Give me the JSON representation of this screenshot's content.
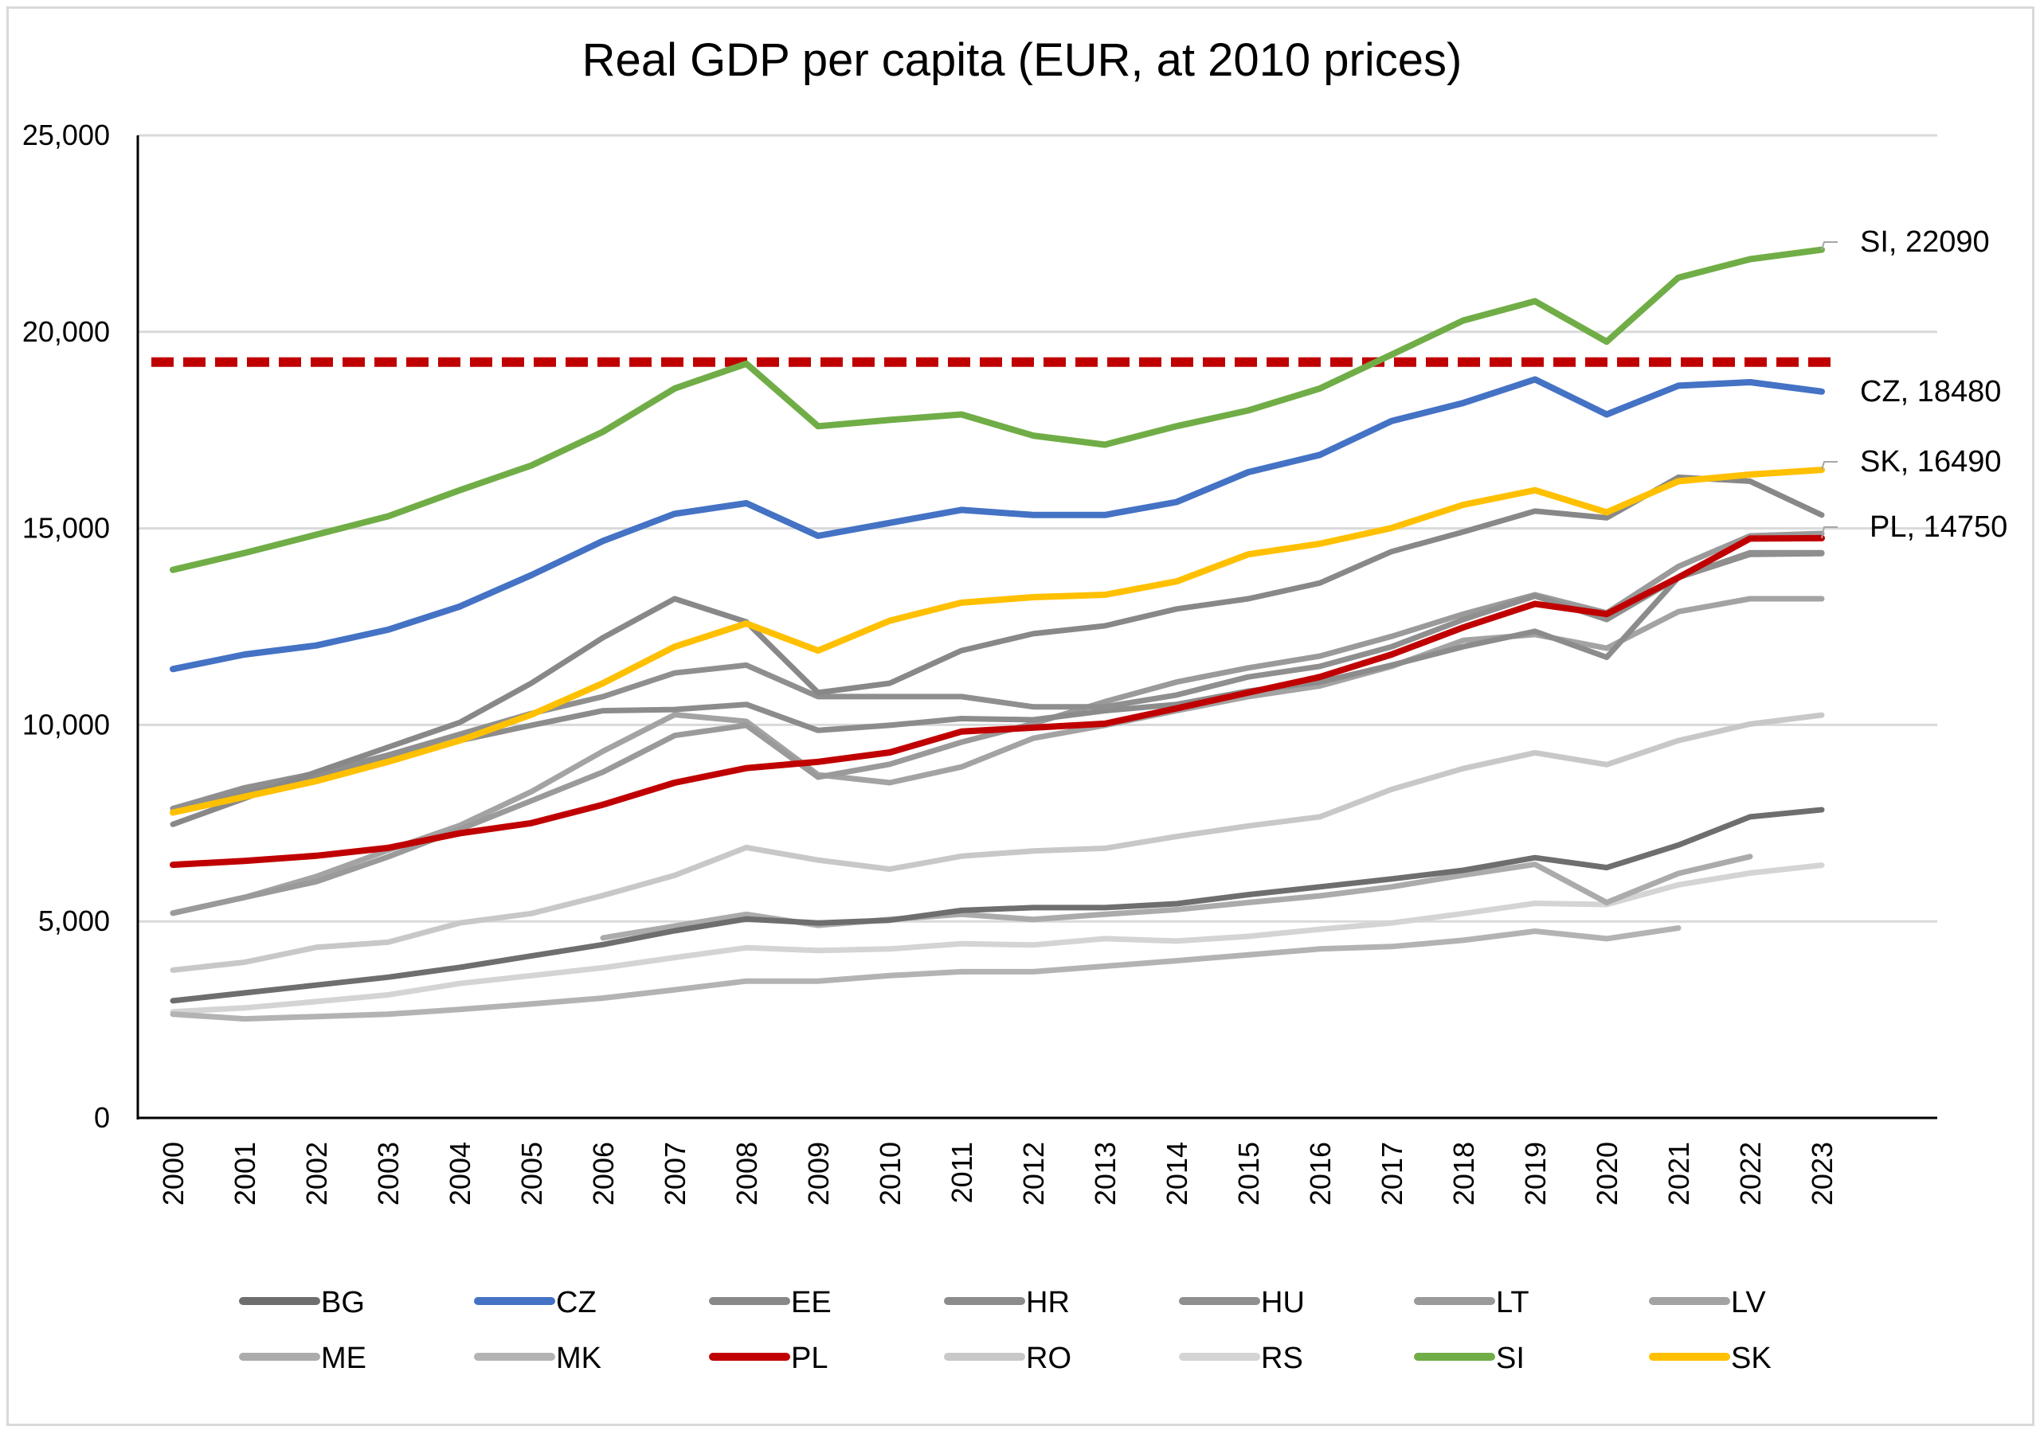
{
  "chart_data": {
    "type": "line",
    "title": "Real GDP per capita (EUR, at 2010 prices)",
    "xlabel": "",
    "ylabel": "",
    "ylim": [
      0,
      25000
    ],
    "yticks": [
      0,
      5000,
      10000,
      15000,
      20000,
      25000
    ],
    "ytick_labels": [
      "0",
      "5,000",
      "10,000",
      "15,000",
      "20,000",
      "25,000"
    ],
    "grid": true,
    "legend_position": "bottom",
    "x": [
      "2000",
      "2001",
      "2002",
      "2003",
      "2004",
      "2005",
      "2006",
      "2007",
      "2008",
      "2009",
      "2010",
      "2011",
      "2012",
      "2013",
      "2014",
      "2015",
      "2016",
      "2017",
      "2018",
      "2019",
      "2020",
      "2021",
      "2022",
      "2023"
    ],
    "reference_line": {
      "value": 19230,
      "color": "#c00000",
      "style": "dashed"
    },
    "series": [
      {
        "name": "BG",
        "color": "#6e6e6e",
        "values": [
          2980,
          3180,
          3380,
          3580,
          3830,
          4120,
          4410,
          4760,
          5060,
          4960,
          5030,
          5280,
          5350,
          5350,
          5450,
          5680,
          5880,
          6080,
          6300,
          6620,
          6370,
          6940,
          7660,
          7840
        ]
      },
      {
        "name": "CZ",
        "color": "#4472c4",
        "values": [
          11420,
          11790,
          12020,
          12420,
          13010,
          13810,
          14680,
          15370,
          15640,
          14810,
          15140,
          15470,
          15340,
          15340,
          15670,
          16430,
          16870,
          17730,
          18190,
          18790,
          17900,
          18630,
          18720,
          18480
        ]
      },
      {
        "name": "EE",
        "color": "#888888",
        "values": [
          7470,
          8130,
          8800,
          9430,
          10060,
          11060,
          12220,
          13210,
          12620,
          10820,
          11060,
          11890,
          12320,
          12520,
          12950,
          13210,
          13610,
          14410,
          14910,
          15440,
          15270,
          16300,
          16200,
          15340
        ]
      },
      {
        "name": "HR",
        "color": "#8c8c8c",
        "values": [
          7870,
          8270,
          8670,
          9130,
          9600,
          9990,
          10360,
          10390,
          10520,
          9860,
          9990,
          10160,
          10130,
          10360,
          10520,
          10860,
          11090,
          11520,
          11990,
          12380,
          11720,
          13750,
          14340,
          14360
        ]
      },
      {
        "name": "HU",
        "color": "#8f8f8f",
        "values": [
          7870,
          8400,
          8770,
          9230,
          9760,
          10290,
          10720,
          11320,
          11520,
          10720,
          10720,
          10720,
          10460,
          10460,
          10760,
          11220,
          11490,
          11990,
          12680,
          13280,
          12680,
          13750,
          14380,
          14380
        ]
      },
      {
        "name": "LT",
        "color": "#9a9a9a",
        "values": [
          5210,
          5610,
          6010,
          6640,
          7340,
          8070,
          8800,
          9730,
          9990,
          8670,
          9000,
          9560,
          10030,
          10590,
          11090,
          11450,
          11750,
          12250,
          12820,
          13310,
          12850,
          14030,
          14810,
          14870
        ]
      },
      {
        "name": "LV",
        "color": "#a3a3a3",
        "values": [
          5210,
          5610,
          6140,
          6810,
          7440,
          8300,
          9330,
          10260,
          10090,
          8730,
          8530,
          8930,
          9660,
          9990,
          10360,
          10720,
          10990,
          11490,
          12150,
          12300,
          11950,
          12880,
          13210,
          13210
        ]
      },
      {
        "name": "ME",
        "color": "#ababab",
        "values": [
          null,
          null,
          null,
          null,
          null,
          null,
          4580,
          4880,
          5180,
          4900,
          5050,
          5180,
          5050,
          5180,
          5300,
          5480,
          5650,
          5880,
          6180,
          6450,
          5480,
          6220,
          6650,
          null
        ]
      },
      {
        "name": "MK",
        "color": "#b3b3b3",
        "values": [
          2640,
          2520,
          2580,
          2640,
          2760,
          2900,
          3050,
          3260,
          3480,
          3480,
          3620,
          3720,
          3720,
          3860,
          4000,
          4150,
          4300,
          4360,
          4520,
          4750,
          4560,
          4830,
          null,
          null
        ]
      },
      {
        "name": "PL",
        "color": "#c00000",
        "values": [
          6440,
          6540,
          6670,
          6870,
          7240,
          7500,
          7970,
          8530,
          8900,
          9060,
          9300,
          9830,
          9930,
          10030,
          10420,
          10820,
          11220,
          11790,
          12480,
          13080,
          12820,
          13750,
          14740,
          14750
        ]
      },
      {
        "name": "RO",
        "color": "#c8c8c8",
        "values": [
          3760,
          3960,
          4340,
          4470,
          4960,
          5200,
          5660,
          6170,
          6880,
          6560,
          6330,
          6660,
          6790,
          6860,
          7160,
          7430,
          7660,
          8360,
          8890,
          9290,
          8990,
          9600,
          10020,
          10250
        ]
      },
      {
        "name": "RS",
        "color": "#d4d4d4",
        "values": [
          2700,
          2800,
          2960,
          3130,
          3420,
          3620,
          3820,
          4080,
          4330,
          4260,
          4300,
          4430,
          4400,
          4560,
          4500,
          4620,
          4800,
          4960,
          5200,
          5460,
          5430,
          5930,
          6230,
          6430
        ]
      },
      {
        "name": "SI",
        "color": "#70ad47",
        "values": [
          13945,
          14375,
          14840,
          15305,
          15970,
          16600,
          17460,
          18560,
          19190,
          17600,
          17760,
          17900,
          17360,
          17130,
          17600,
          18000,
          18560,
          19420,
          20290,
          20780,
          19750,
          21380,
          21850,
          22090
        ]
      },
      {
        "name": "SK",
        "color": "#ffc000",
        "values": [
          7770,
          8170,
          8570,
          9060,
          9600,
          10260,
          11060,
          11990,
          12580,
          11890,
          12650,
          13110,
          13250,
          13310,
          13650,
          14340,
          14610,
          15010,
          15600,
          15970,
          15410,
          16200,
          16370,
          16490
        ]
      }
    ],
    "annotations": [
      {
        "series": "SI",
        "text": "SI, 22090"
      },
      {
        "series": "CZ",
        "text": "CZ, 18480"
      },
      {
        "series": "SK",
        "text": "SK, 16490"
      },
      {
        "series": "PL",
        "text": "PL, 14750"
      }
    ]
  }
}
